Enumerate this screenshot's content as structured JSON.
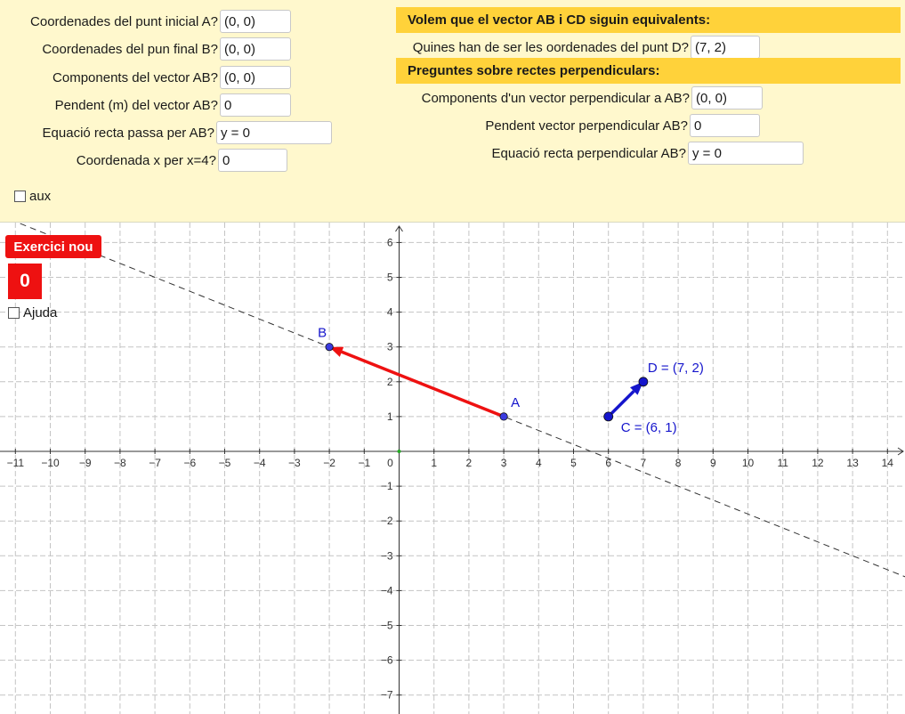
{
  "questions_left": [
    {
      "label": "Coordenades del punt inicial A?",
      "value": "(0, 0)"
    },
    {
      "label": "Coordenades del pun final B?",
      "value": "(0, 0)"
    },
    {
      "label": "Components del vector AB?",
      "value": "(0, 0)"
    },
    {
      "label": "Pendent (m) del vector AB?",
      "value": "0"
    },
    {
      "label": "Equació recta passa per AB?",
      "value": "y = 0"
    },
    {
      "label": "Coordenada x per x=4?",
      "value": "0"
    }
  ],
  "aux_checkbox": {
    "label": "aux",
    "checked": false
  },
  "equivalent_section": {
    "header": "Volem que el vector AB i CD siguin equivalents:",
    "question": {
      "label": "Quines han de ser les oordenades del punt D?",
      "value": "(7, 2)"
    }
  },
  "perpendicular_section": {
    "header": "Preguntes sobre rectes perpendiculars:",
    "questions": [
      {
        "label": "Components d'un vector perpendicular a AB?",
        "value": "(0, 0)"
      },
      {
        "label": "Pendent vector perpendicular AB?",
        "value": "0"
      },
      {
        "label": "Equació recta perpendicular AB?",
        "value": "y = 0"
      }
    ]
  },
  "exercise_button": {
    "label": "Exercici nou"
  },
  "score": "0",
  "help_checkbox": {
    "label": "Ajuda",
    "checked": false
  },
  "colors": {
    "vector_ab": "#ee1111",
    "vector_cd": "#1515cc",
    "point": "#1515cc",
    "panel_bg": "#fff8cd",
    "header_bg": "#ffd23a",
    "button_bg": "#ee1111"
  },
  "graph": {
    "x_range": [
      -11,
      14
    ],
    "y_range": [
      -7,
      6
    ],
    "grid": true,
    "points": [
      {
        "name": "A",
        "label": "A",
        "x": 3,
        "y": 1
      },
      {
        "name": "B",
        "label": "B",
        "x": -2,
        "y": 3
      },
      {
        "name": "C",
        "label": "C = (6, 1)",
        "x": 6,
        "y": 1
      },
      {
        "name": "D",
        "label": "D = (7, 2)",
        "x": 7,
        "y": 2
      }
    ],
    "vectors": [
      {
        "name": "AB",
        "from": [
          3,
          1
        ],
        "to": [
          -2,
          3
        ],
        "color": "#ee1111"
      },
      {
        "name": "CD",
        "from": [
          6,
          1
        ],
        "to": [
          7,
          2
        ],
        "color": "#1515cc"
      }
    ],
    "dashed_line": {
      "through": [
        [
          3,
          1
        ],
        [
          -2,
          3
        ]
      ]
    }
  }
}
